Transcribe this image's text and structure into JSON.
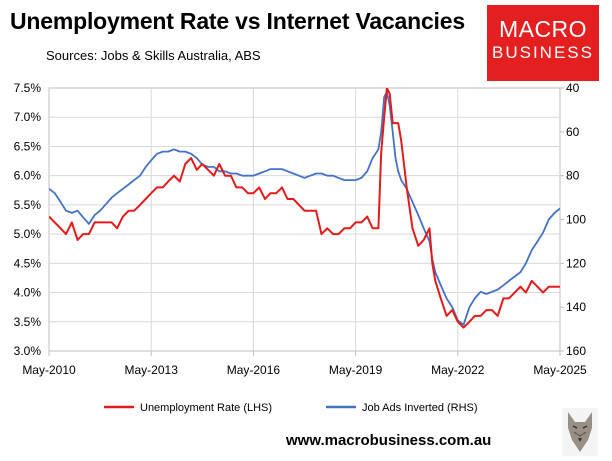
{
  "header": {
    "title": "Unemployment Rate vs Internet Vacancies",
    "subtitle": "Sources: Jobs & Skills Australia, ABS"
  },
  "logo": {
    "line1": "MACRO",
    "line2": "BUSINESS"
  },
  "footer": {
    "website": "www.macrobusiness.com.au"
  },
  "chart_data": {
    "type": "line",
    "x_tick_labels": [
      "May-2010",
      "May-2013",
      "May-2016",
      "May-2019",
      "May-2022",
      "May-2025"
    ],
    "y_left": {
      "ticks": [
        "3.0%",
        "3.5%",
        "4.0%",
        "4.5%",
        "5.0%",
        "5.5%",
        "6.0%",
        "6.5%",
        "7.0%",
        "7.5%"
      ],
      "range": [
        3.0,
        7.5
      ]
    },
    "y_right": {
      "ticks": [
        "40",
        "60",
        "80",
        "100",
        "120",
        "140",
        "160"
      ],
      "range": [
        40,
        160
      ],
      "inverted": true
    },
    "grid": true,
    "legend_position": "bottom",
    "series": [
      {
        "name": "Unemployment Rate (LHS)",
        "axis": "left",
        "color": "#e31b1b",
        "x": [
          2010.33,
          2010.5,
          2010.67,
          2010.83,
          2011.0,
          2011.17,
          2011.33,
          2011.5,
          2011.67,
          2011.83,
          2012.0,
          2012.17,
          2012.33,
          2012.5,
          2012.67,
          2012.83,
          2013.0,
          2013.17,
          2013.33,
          2013.5,
          2013.67,
          2013.83,
          2014.0,
          2014.17,
          2014.33,
          2014.5,
          2014.67,
          2014.83,
          2015.0,
          2015.17,
          2015.33,
          2015.5,
          2015.67,
          2015.83,
          2016.0,
          2016.17,
          2016.33,
          2016.5,
          2016.67,
          2016.83,
          2017.0,
          2017.17,
          2017.33,
          2017.5,
          2017.67,
          2017.83,
          2018.0,
          2018.17,
          2018.33,
          2018.5,
          2018.67,
          2018.83,
          2019.0,
          2019.17,
          2019.33,
          2019.5,
          2019.67,
          2019.83,
          2020.0,
          2020.08,
          2020.17,
          2020.25,
          2020.33,
          2020.42,
          2020.5,
          2020.58,
          2020.67,
          2020.83,
          2021.0,
          2021.17,
          2021.33,
          2021.5,
          2021.58,
          2021.67,
          2021.83,
          2022.0,
          2022.17,
          2022.33,
          2022.5,
          2022.67,
          2022.83,
          2023.0,
          2023.17,
          2023.33,
          2023.5,
          2023.67,
          2023.83,
          2024.0,
          2024.17,
          2024.33,
          2024.5,
          2024.67,
          2024.83,
          2025.0,
          2025.17,
          2025.33
        ],
        "values": [
          5.3,
          5.2,
          5.1,
          5.0,
          5.2,
          4.9,
          5.0,
          5.0,
          5.2,
          5.2,
          5.2,
          5.2,
          5.1,
          5.3,
          5.4,
          5.4,
          5.5,
          5.6,
          5.7,
          5.8,
          5.8,
          5.9,
          6.0,
          5.9,
          6.2,
          6.3,
          6.1,
          6.2,
          6.1,
          6.0,
          6.2,
          6.0,
          6.0,
          5.8,
          5.8,
          5.7,
          5.7,
          5.8,
          5.6,
          5.7,
          5.7,
          5.8,
          5.6,
          5.6,
          5.5,
          5.4,
          5.4,
          5.4,
          5.0,
          5.1,
          5.0,
          5.0,
          5.1,
          5.1,
          5.2,
          5.2,
          5.3,
          5.1,
          5.1,
          6.4,
          7.0,
          7.5,
          7.4,
          6.9,
          6.9,
          6.9,
          6.6,
          5.8,
          5.1,
          4.8,
          4.9,
          5.1,
          4.5,
          4.2,
          3.9,
          3.6,
          3.7,
          3.5,
          3.4,
          3.5,
          3.6,
          3.6,
          3.7,
          3.7,
          3.6,
          3.9,
          3.9,
          4.0,
          4.1,
          4.0,
          4.2,
          4.1,
          4.0,
          4.1,
          4.1,
          4.1
        ]
      },
      {
        "name": "Job Ads Inverted (RHS)",
        "axis": "right",
        "color": "#4472c4",
        "x": [
          2010.33,
          2010.5,
          2010.67,
          2010.83,
          2011.0,
          2011.17,
          2011.33,
          2011.5,
          2011.67,
          2011.83,
          2012.0,
          2012.17,
          2012.33,
          2012.5,
          2012.67,
          2012.83,
          2013.0,
          2013.17,
          2013.33,
          2013.5,
          2013.67,
          2013.83,
          2014.0,
          2014.17,
          2014.33,
          2014.5,
          2014.67,
          2014.83,
          2015.0,
          2015.17,
          2015.33,
          2015.5,
          2015.67,
          2015.83,
          2016.0,
          2016.17,
          2016.33,
          2016.5,
          2016.67,
          2016.83,
          2017.0,
          2017.17,
          2017.33,
          2017.5,
          2017.67,
          2017.83,
          2018.0,
          2018.17,
          2018.33,
          2018.5,
          2018.67,
          2018.83,
          2019.0,
          2019.17,
          2019.33,
          2019.5,
          2019.67,
          2019.83,
          2020.0,
          2020.08,
          2020.17,
          2020.25,
          2020.33,
          2020.42,
          2020.5,
          2020.58,
          2020.67,
          2020.83,
          2021.0,
          2021.17,
          2021.33,
          2021.5,
          2021.58,
          2021.67,
          2021.83,
          2022.0,
          2022.17,
          2022.33,
          2022.5,
          2022.67,
          2022.83,
          2023.0,
          2023.17,
          2023.33,
          2023.5,
          2023.67,
          2023.83,
          2024.0,
          2024.17,
          2024.33,
          2024.5,
          2024.67,
          2024.83,
          2025.0,
          2025.17,
          2025.33
        ],
        "values": [
          86,
          88,
          92,
          96,
          97,
          96,
          99,
          102,
          98,
          96,
          93,
          90,
          88,
          86,
          84,
          82,
          80,
          76,
          73,
          70,
          69,
          69,
          68,
          69,
          69,
          70,
          72,
          75,
          76,
          76,
          78,
          78,
          79,
          79,
          80,
          80,
          80,
          79,
          78,
          77,
          77,
          77,
          78,
          79,
          80,
          81,
          80,
          79,
          79,
          80,
          80,
          81,
          82,
          82,
          82,
          81,
          78,
          72,
          68,
          60,
          44,
          42,
          48,
          60,
          72,
          78,
          82,
          86,
          92,
          98,
          104,
          110,
          118,
          124,
          130,
          136,
          140,
          146,
          148,
          140,
          136,
          133,
          134,
          133,
          132,
          130,
          128,
          126,
          124,
          120,
          114,
          110,
          106,
          100,
          97,
          95
        ]
      }
    ]
  }
}
